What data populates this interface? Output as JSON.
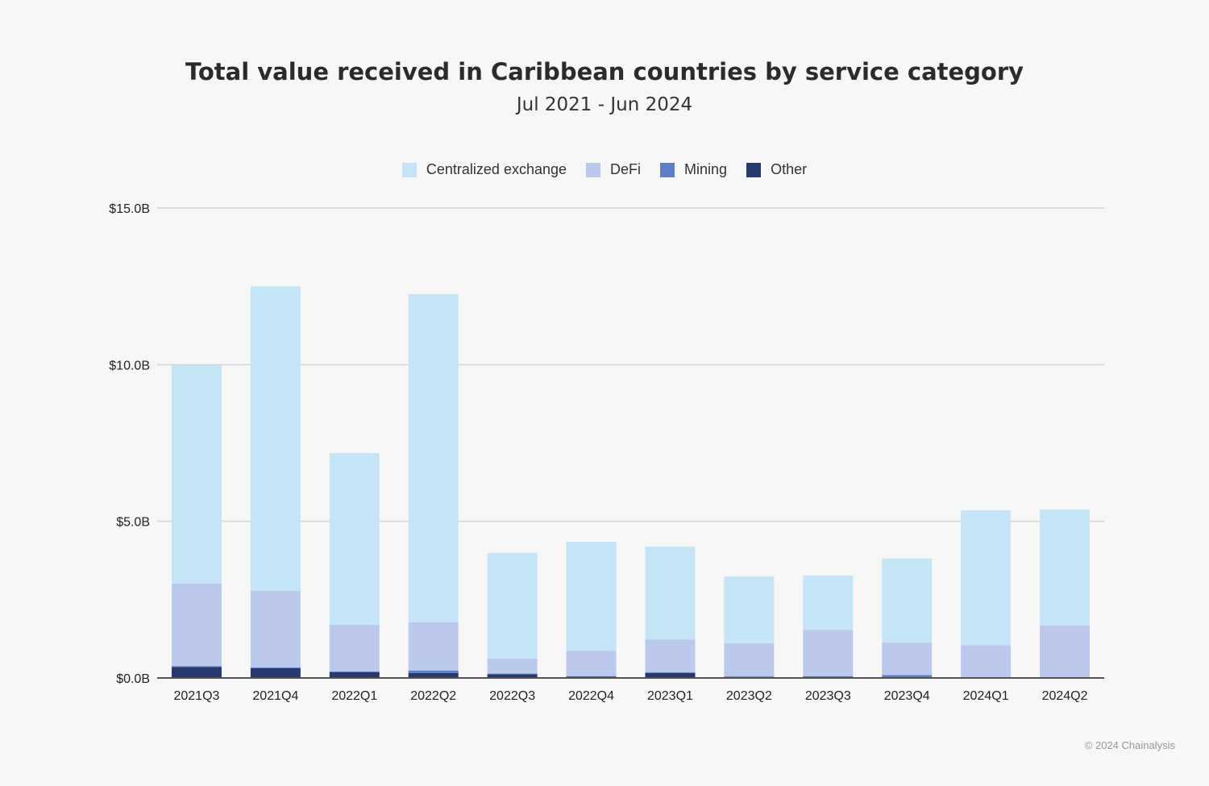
{
  "chart_data": {
    "type": "bar",
    "stacked": true,
    "title": "Total value received in Caribbean countries by service category",
    "subtitle": "Jul 2021 - Jun 2024",
    "xlabel": "",
    "ylabel": "",
    "ylim": [
      0,
      15
    ],
    "yticks": [
      {
        "value": 0,
        "label": "$0.0B"
      },
      {
        "value": 5,
        "label": "$5.0B"
      },
      {
        "value": 10,
        "label": "$10.0B"
      },
      {
        "value": 15,
        "label": "$15.0B"
      }
    ],
    "grid": true,
    "legend_position": "top",
    "categories": [
      "2021Q3",
      "2021Q4",
      "2022Q1",
      "2022Q2",
      "2022Q3",
      "2022Q4",
      "2023Q1",
      "2023Q2",
      "2023Q3",
      "2023Q4",
      "2024Q1",
      "2024Q2"
    ],
    "series": [
      {
        "name": "Other",
        "color": "#263a70",
        "values": [
          0.35,
          0.31,
          0.18,
          0.16,
          0.12,
          0.04,
          0.16,
          0.01,
          0.04,
          0.02,
          0.01,
          0.01
        ]
      },
      {
        "name": "Mining",
        "color": "#5f7fc4",
        "values": [
          0.03,
          0.03,
          0.03,
          0.08,
          0.02,
          0.02,
          0.02,
          0.04,
          0.01,
          0.07,
          0.01,
          0.01
        ]
      },
      {
        "name": "DeFi",
        "color": "#bbc9ec",
        "values": [
          2.63,
          2.44,
          1.49,
          1.54,
          0.48,
          0.81,
          1.05,
          1.06,
          1.49,
          1.04,
          1.03,
          1.65
        ]
      },
      {
        "name": "Centralized exchange",
        "color": "#c5e5f6",
        "values": [
          6.97,
          9.72,
          5.48,
          10.47,
          3.37,
          3.48,
          2.96,
          2.13,
          1.73,
          2.68,
          4.3,
          3.71
        ]
      }
    ],
    "legend_order": [
      "Centralized exchange",
      "DeFi",
      "Mining",
      "Other"
    ]
  },
  "credit": "© 2024 Chainalysis"
}
